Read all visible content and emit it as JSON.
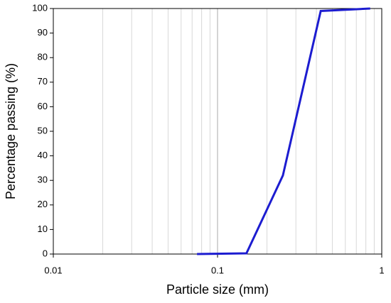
{
  "chart_data": {
    "type": "line",
    "x_label": "Particle size (mm)",
    "y_label": "Percentage passing (%)",
    "x_scale": "log",
    "grid": true,
    "x": [
      0.075,
      0.15,
      0.25,
      0.425,
      0.85
    ],
    "series": [
      {
        "color": "#1c1cd0",
        "values": [
          0,
          0.3,
          32,
          99,
          100
        ]
      }
    ],
    "xlim": [
      0.01,
      1
    ],
    "xticks": [
      0.01,
      0.1,
      1
    ],
    "ylim": [
      0,
      100
    ],
    "yticks": [
      0,
      10,
      20,
      30,
      40,
      50,
      60,
      70,
      80,
      90,
      100
    ]
  }
}
